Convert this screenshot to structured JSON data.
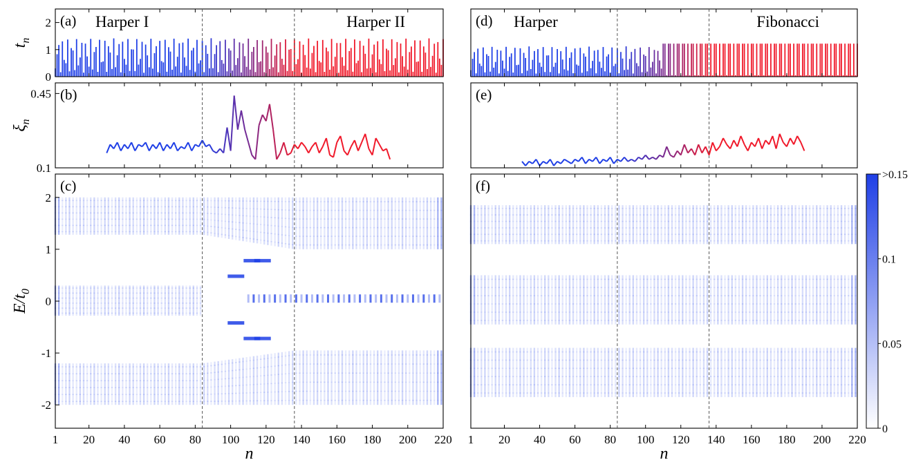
{
  "figure": {
    "x_axis": {
      "label": "n",
      "range": [
        1,
        220
      ],
      "ticks": [
        1,
        20,
        40,
        60,
        80,
        100,
        120,
        140,
        160,
        180,
        200,
        220
      ]
    },
    "vlines": [
      84,
      136
    ]
  },
  "colors": {
    "start": "#1f3fe6",
    "mid": "#7a2a8f",
    "end": "#f0192a",
    "axis": "#000000",
    "dash": "#555555",
    "heat": "#1f3fe6"
  },
  "colorbar": {
    "ticks": [
      ">0.15",
      "0.1",
      "0.05",
      "0"
    ],
    "tick_values": [
      0.15,
      0.1,
      0.05,
      0
    ],
    "range": [
      0,
      0.15
    ]
  },
  "chart_data": [
    {
      "panel": "a",
      "type": "bar",
      "tag": "(a)",
      "ylabel": "t",
      "ylabel_sub": "n",
      "yrange": [
        0,
        2.5
      ],
      "yticks": [
        0,
        1,
        2
      ],
      "left_label": "Harper I",
      "right_label": "Harper II",
      "series": {
        "x_range": [
          1,
          220
        ],
        "left_model": "harper",
        "right_model": "harper",
        "left_amp": 1.4,
        "right_amp": 1.4
      }
    },
    {
      "panel": "b",
      "type": "line",
      "tag": "(b)",
      "ylabel": "ξ",
      "ylabel_sub": "n",
      "yrange": [
        0.1,
        0.5
      ],
      "yticks": [
        0.1,
        0.45
      ],
      "ytick_labels": [
        "0.1",
        "0.45"
      ],
      "series": {
        "x": [
          30,
          32,
          34,
          36,
          38,
          40,
          42,
          44,
          46,
          48,
          50,
          52,
          54,
          56,
          58,
          60,
          62,
          64,
          66,
          68,
          70,
          72,
          74,
          76,
          78,
          80,
          82,
          84,
          86,
          88,
          90,
          92,
          94,
          96,
          98,
          100,
          102,
          104,
          106,
          108,
          110,
          112,
          114,
          116,
          118,
          120,
          122,
          124,
          126,
          128,
          130,
          132,
          134,
          136,
          138,
          140,
          142,
          144,
          146,
          148,
          150,
          152,
          154,
          156,
          158,
          160,
          162,
          164,
          166,
          168,
          170,
          172,
          174,
          176,
          178,
          180,
          182,
          184,
          186,
          188,
          190
        ],
        "y": [
          0.17,
          0.21,
          0.19,
          0.22,
          0.18,
          0.21,
          0.19,
          0.22,
          0.18,
          0.21,
          0.2,
          0.22,
          0.18,
          0.21,
          0.19,
          0.22,
          0.18,
          0.21,
          0.19,
          0.22,
          0.18,
          0.2,
          0.19,
          0.22,
          0.18,
          0.21,
          0.2,
          0.23,
          0.2,
          0.21,
          0.18,
          0.17,
          0.19,
          0.17,
          0.29,
          0.18,
          0.44,
          0.28,
          0.37,
          0.28,
          0.22,
          0.16,
          0.14,
          0.3,
          0.35,
          0.32,
          0.4,
          0.28,
          0.14,
          0.17,
          0.22,
          0.16,
          0.17,
          0.21,
          0.19,
          0.22,
          0.2,
          0.17,
          0.2,
          0.22,
          0.17,
          0.2,
          0.24,
          0.16,
          0.15,
          0.22,
          0.25,
          0.18,
          0.16,
          0.2,
          0.23,
          0.18,
          0.22,
          0.26,
          0.19,
          0.16,
          0.24,
          0.21,
          0.18,
          0.19,
          0.14
        ]
      }
    },
    {
      "panel": "c",
      "type": "heatmap",
      "tag": "(c)",
      "ylabel": "E/t",
      "ylabel_sub": "0",
      "yrange": [
        -2.45,
        2.45
      ],
      "yticks": [
        -2,
        -1,
        0,
        1,
        2
      ],
      "ytick_labels": [
        "-2",
        "-1",
        "0",
        "1",
        "2"
      ],
      "bands": [
        {
          "x0": 1,
          "x1": 220,
          "e0": 1.28,
          "e1": 2.0,
          "fade_left_end": 84,
          "start_low": 1.28,
          "end_low": 1.0
        },
        {
          "x0": 1,
          "x1": 220,
          "e0": -2.0,
          "e1": -1.2,
          "start_high": -1.2,
          "end_high": -0.95
        },
        {
          "x0": 1,
          "x1": 120,
          "e0": -0.28,
          "e1": 0.3,
          "dense_until": 84
        }
      ],
      "mid_line": {
        "x0": 110,
        "x1": 220,
        "e": 0.05
      },
      "spots": [
        [
          112,
          -0.72
        ],
        [
          112,
          0.78
        ],
        [
          103,
          0.48
        ],
        [
          103,
          -0.42
        ],
        [
          118,
          -0.72
        ],
        [
          118,
          0.78
        ]
      ]
    },
    {
      "panel": "d",
      "type": "bar",
      "tag": "(d)",
      "ylabel": "",
      "ylabel_sub": "",
      "yrange": [
        0,
        2.5
      ],
      "yticks": [],
      "left_label": "Harper",
      "right_label": "Fibonacci",
      "series": {
        "x_range": [
          1,
          220
        ],
        "left_model": "harper",
        "right_model": "fibonacci",
        "left_amp": 1.1,
        "right_amp": 1.22
      }
    },
    {
      "panel": "e",
      "type": "line",
      "tag": "(e)",
      "ylabel": "",
      "ylabel_sub": "",
      "yrange": [
        0.1,
        0.5
      ],
      "yticks": [],
      "series": {
        "x": [
          30,
          32,
          34,
          36,
          38,
          40,
          42,
          44,
          46,
          48,
          50,
          52,
          54,
          56,
          58,
          60,
          62,
          64,
          66,
          68,
          70,
          72,
          74,
          76,
          78,
          80,
          82,
          84,
          86,
          88,
          90,
          92,
          94,
          96,
          98,
          100,
          102,
          104,
          106,
          108,
          110,
          112,
          114,
          116,
          118,
          120,
          122,
          124,
          126,
          128,
          130,
          132,
          134,
          136,
          138,
          140,
          142,
          144,
          146,
          148,
          150,
          152,
          154,
          156,
          158,
          160,
          162,
          164,
          166,
          168,
          170,
          172,
          174,
          176,
          178,
          180,
          182,
          184,
          186,
          188,
          190
        ],
        "y": [
          0.13,
          0.11,
          0.13,
          0.12,
          0.14,
          0.11,
          0.13,
          0.12,
          0.14,
          0.11,
          0.13,
          0.12,
          0.14,
          0.13,
          0.12,
          0.14,
          0.13,
          0.15,
          0.12,
          0.14,
          0.13,
          0.15,
          0.12,
          0.14,
          0.13,
          0.15,
          0.12,
          0.14,
          0.13,
          0.15,
          0.13,
          0.14,
          0.13,
          0.15,
          0.14,
          0.16,
          0.14,
          0.15,
          0.14,
          0.16,
          0.15,
          0.2,
          0.16,
          0.15,
          0.18,
          0.16,
          0.21,
          0.17,
          0.19,
          0.16,
          0.21,
          0.17,
          0.2,
          0.16,
          0.22,
          0.18,
          0.2,
          0.24,
          0.21,
          0.19,
          0.23,
          0.2,
          0.25,
          0.21,
          0.18,
          0.22,
          0.2,
          0.24,
          0.19,
          0.23,
          0.21,
          0.25,
          0.19,
          0.26,
          0.22,
          0.2,
          0.24,
          0.21,
          0.25,
          0.22,
          0.18
        ]
      }
    },
    {
      "panel": "f",
      "type": "heatmap",
      "tag": "(f)",
      "ylabel": "",
      "ylabel_sub": "",
      "yrange": [
        -2.45,
        2.45
      ],
      "yticks": [],
      "bands": [
        {
          "x0": 1,
          "x1": 220,
          "e0": 1.1,
          "e1": 1.85
        },
        {
          "x0": 1,
          "x1": 220,
          "e0": -0.45,
          "e1": 0.5
        },
        {
          "x0": 1,
          "x1": 220,
          "e0": -1.85,
          "e1": -0.9
        }
      ],
      "mid_line": null,
      "spots": []
    }
  ]
}
